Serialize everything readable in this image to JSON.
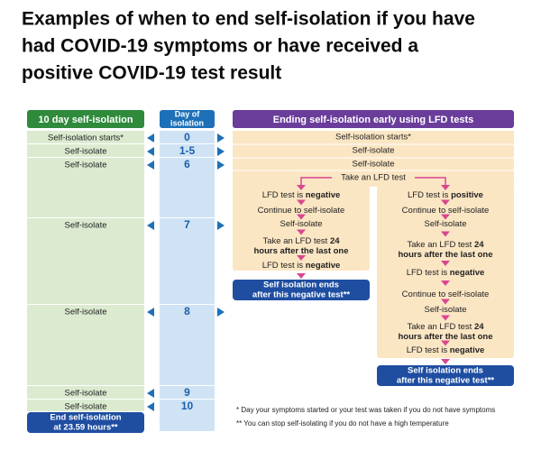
{
  "title": [
    "Examples of when to end self-isolation if you have",
    "had COVID-19 symptoms or have received a",
    "positive COVID-19 test result"
  ],
  "left_column": {
    "header": "10 day self-isolation",
    "rows": [
      "Self-isolation starts*",
      "Self-isolate",
      "Self-isolate",
      "Self-isolate",
      "Self-isolate",
      "Self-isolate",
      "Self-isolate"
    ],
    "end": [
      "End self-isolation",
      "at 23.59 hours**"
    ]
  },
  "day_column": {
    "header": [
      "Day of",
      "isolation"
    ],
    "days": [
      "0",
      "1-5",
      "6",
      "7",
      "8",
      "9",
      "10"
    ]
  },
  "right_column": {
    "header": "Ending self-isolation early using LFD tests",
    "rows": [
      "Self-isolation starts*",
      "Self-isolate",
      "Self-isolate",
      "Take an LFD test"
    ],
    "negative_branch": {
      "steps": [
        [
          {
            "text": "LFD test is ",
            "bold": "negative"
          }
        ],
        [
          {
            "text": "Continue to self-isolate"
          }
        ],
        [
          {
            "text": "Self-isolate"
          }
        ],
        [
          {
            "text": "Take an LFD test ",
            "bold": "24"
          },
          {
            "bold": "hours after the last one"
          }
        ],
        [
          {
            "text": "LFD test is ",
            "bold": "negative"
          }
        ]
      ],
      "end": [
        "Self isolation ends",
        "after this negative test**"
      ]
    },
    "positive_branch": {
      "steps": [
        [
          {
            "text": "LFD test is ",
            "bold": "positive"
          }
        ],
        [
          {
            "text": "Continue to self-isolate"
          }
        ],
        [
          {
            "text": "Self-isolate"
          }
        ],
        [
          {
            "text": "Take an LFD test ",
            "bold": "24"
          },
          {
            "bold": "hours after the last one"
          }
        ],
        [
          {
            "text": "LFD test is ",
            "bold": "negative"
          }
        ],
        [
          {
            "text": "Continue to self-isolate"
          }
        ],
        [
          {
            "text": "Self-isolate"
          }
        ],
        [
          {
            "text": "Take an LFD test ",
            "bold": "24"
          },
          {
            "bold": "hours after the last one"
          }
        ],
        [
          {
            "text": "LFD test is ",
            "bold": "negative"
          }
        ]
      ],
      "end": [
        "Self isolation ends",
        "after this negative test**"
      ]
    }
  },
  "footnotes": [
    "* Day your symptoms started or your test was taken if you do not have symptoms",
    "** You can stop self-isolating if you do not have a high temperature"
  ]
}
